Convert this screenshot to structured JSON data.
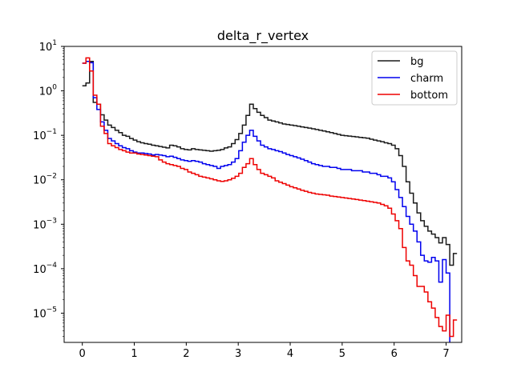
{
  "chart_data": {
    "type": "line",
    "step": true,
    "title": "delta_r_vertex",
    "xlabel": "",
    "ylabel": "",
    "xlim": [
      -0.35,
      7.3
    ],
    "ylim": [
      2.2e-06,
      10
    ],
    "yscale": "log",
    "xticks": [
      0,
      1,
      2,
      3,
      4,
      5,
      6,
      7
    ],
    "xtick_labels": [
      "0",
      "1",
      "2",
      "3",
      "4",
      "5",
      "6",
      "7"
    ],
    "ytick_labels": [
      {
        "base": "10",
        "exp": "1",
        "value": 10
      },
      {
        "base": "10",
        "exp": "0",
        "value": 1
      },
      {
        "base": "10",
        "exp": "−1",
        "value": 0.1
      },
      {
        "base": "10",
        "exp": "−2",
        "value": 0.01
      },
      {
        "base": "10",
        "exp": "−3",
        "value": 0.001
      },
      {
        "base": "10",
        "exp": "−4",
        "value": 0.0001
      },
      {
        "base": "10",
        "exp": "−5",
        "value": 1e-05
      }
    ],
    "legend_position": "top-right",
    "bin_edges_start": 0.0,
    "bin_width": 0.07,
    "series": [
      {
        "name": "bg",
        "color": "#1a1a1a",
        "values": [
          1.3,
          1.5,
          4.6,
          0.55,
          0.5,
          0.29,
          0.22,
          0.17,
          0.15,
          0.13,
          0.115,
          0.1,
          0.095,
          0.085,
          0.078,
          0.072,
          0.068,
          0.065,
          0.063,
          0.06,
          0.058,
          0.056,
          0.054,
          0.052,
          0.06,
          0.058,
          0.055,
          0.05,
          0.048,
          0.047,
          0.05,
          0.048,
          0.047,
          0.046,
          0.045,
          0.044,
          0.045,
          0.046,
          0.048,
          0.052,
          0.055,
          0.065,
          0.08,
          0.11,
          0.17,
          0.28,
          0.5,
          0.4,
          0.33,
          0.28,
          0.25,
          0.22,
          0.21,
          0.2,
          0.19,
          0.18,
          0.175,
          0.17,
          0.165,
          0.16,
          0.155,
          0.15,
          0.145,
          0.14,
          0.135,
          0.13,
          0.125,
          0.12,
          0.115,
          0.11,
          0.105,
          0.1,
          0.098,
          0.096,
          0.094,
          0.092,
          0.09,
          0.088,
          0.086,
          0.082,
          0.078,
          0.075,
          0.072,
          0.068,
          0.065,
          0.06,
          0.05,
          0.035,
          0.02,
          0.009,
          0.005,
          0.003,
          0.0018,
          0.0012,
          0.0009,
          0.0007,
          0.0006,
          0.0005,
          0.00038,
          0.0005,
          0.00035,
          0.00012,
          0.00022
        ]
      },
      {
        "name": "charm",
        "color": "#0000ee",
        "values": [
          4.2,
          4.6,
          4.3,
          0.7,
          0.38,
          0.2,
          0.13,
          0.085,
          0.075,
          0.065,
          0.058,
          0.053,
          0.05,
          0.045,
          0.042,
          0.04,
          0.04,
          0.039,
          0.038,
          0.036,
          0.037,
          0.036,
          0.035,
          0.033,
          0.034,
          0.032,
          0.03,
          0.028,
          0.027,
          0.026,
          0.027,
          0.026,
          0.025,
          0.023,
          0.022,
          0.021,
          0.02,
          0.018,
          0.02,
          0.021,
          0.022,
          0.025,
          0.03,
          0.045,
          0.07,
          0.1,
          0.13,
          0.095,
          0.075,
          0.06,
          0.055,
          0.05,
          0.048,
          0.045,
          0.043,
          0.04,
          0.037,
          0.035,
          0.033,
          0.031,
          0.029,
          0.027,
          0.025,
          0.023,
          0.022,
          0.021,
          0.02,
          0.02,
          0.019,
          0.019,
          0.018,
          0.017,
          0.017,
          0.017,
          0.016,
          0.016,
          0.016,
          0.015,
          0.015,
          0.014,
          0.014,
          0.013,
          0.012,
          0.012,
          0.011,
          0.009,
          0.006,
          0.004,
          0.0025,
          0.0015,
          0.001,
          0.0007,
          0.0004,
          0.0002,
          0.00015,
          0.00014,
          0.00018,
          0.00015,
          5e-05,
          0.00016,
          8e-05,
          1.5e-06
        ]
      },
      {
        "name": "bottom",
        "color": "#ee0000",
        "values": [
          4.2,
          5.5,
          2.8,
          0.8,
          0.5,
          0.16,
          0.11,
          0.065,
          0.058,
          0.053,
          0.048,
          0.045,
          0.042,
          0.04,
          0.04,
          0.038,
          0.037,
          0.036,
          0.035,
          0.034,
          0.033,
          0.028,
          0.025,
          0.023,
          0.022,
          0.021,
          0.02,
          0.018,
          0.017,
          0.015,
          0.014,
          0.013,
          0.012,
          0.0115,
          0.011,
          0.0105,
          0.01,
          0.0095,
          0.0092,
          0.0095,
          0.01,
          0.0108,
          0.012,
          0.014,
          0.019,
          0.023,
          0.03,
          0.022,
          0.017,
          0.014,
          0.013,
          0.012,
          0.011,
          0.0095,
          0.0088,
          0.0082,
          0.0076,
          0.007,
          0.0066,
          0.0062,
          0.0058,
          0.0055,
          0.0052,
          0.005,
          0.0048,
          0.0047,
          0.0046,
          0.0045,
          0.0043,
          0.0042,
          0.0041,
          0.004,
          0.0039,
          0.0038,
          0.0037,
          0.0036,
          0.0035,
          0.0034,
          0.0033,
          0.0032,
          0.0031,
          0.003,
          0.0028,
          0.0026,
          0.0023,
          0.0017,
          0.0012,
          0.0008,
          0.0003,
          0.00015,
          0.00012,
          7e-05,
          4e-05,
          4e-05,
          3e-05,
          1.8e-05,
          1.3e-05,
          8e-06,
          5e-06,
          4e-06,
          9e-06,
          3e-06,
          7e-06
        ]
      }
    ]
  }
}
